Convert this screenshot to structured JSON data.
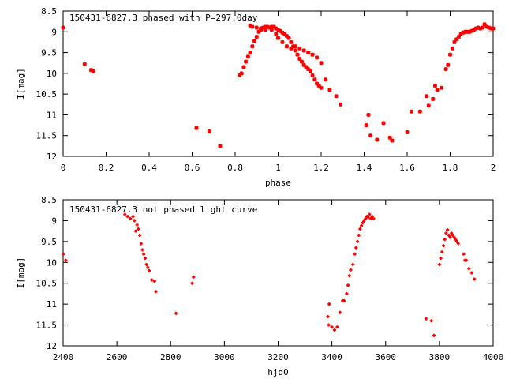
{
  "chart_data": [
    {
      "type": "scatter",
      "title": "150431-6827.3 phased with P=297.0day",
      "xlabel": "phase",
      "ylabel": "I[mag]",
      "xlim": [
        0,
        2
      ],
      "ylim": [
        8.5,
        12
      ],
      "y_inverted": true,
      "xticks": [
        "0",
        "0.2",
        "0.4",
        "0.6",
        "0.8",
        "1",
        "1.2",
        "1.4",
        "1.6",
        "1.8",
        "2"
      ],
      "yticks": [
        "8.5",
        "9",
        "9.5",
        "10",
        "10.5",
        "11",
        "11.5",
        "12"
      ],
      "grid": false,
      "marker_color": "#ff0000",
      "series": [
        {
          "x": [
            0.0,
            0.1,
            0.13,
            0.14,
            0.62,
            0.68,
            0.73,
            0.82,
            0.83,
            0.84,
            0.85,
            0.86,
            0.87,
            0.88,
            0.89,
            0.9,
            0.91,
            0.92,
            0.93,
            0.94,
            0.95,
            0.96,
            0.97,
            0.98,
            0.99,
            1.0,
            1.01,
            1.02,
            1.03,
            1.04,
            1.05,
            1.06,
            1.07,
            1.08,
            1.09,
            1.1,
            1.11,
            1.12,
            1.13,
            1.14,
            1.15,
            1.16,
            1.17,
            1.18,
            1.19,
            1.2,
            0.87,
            0.88,
            0.9,
            0.92,
            0.94,
            0.97,
            0.99,
            1.0,
            1.02,
            1.04,
            1.06,
            1.08,
            1.1,
            1.12,
            1.14,
            1.16,
            1.18,
            1.2,
            1.22,
            1.24,
            1.27,
            1.29,
            1.41,
            1.42,
            1.43,
            1.46,
            1.49,
            1.52,
            1.53,
            1.6,
            1.62,
            1.66,
            1.69,
            1.7,
            1.72,
            1.73,
            1.74,
            1.76,
            1.78,
            1.79,
            1.8,
            1.81,
            1.82,
            1.83,
            1.84,
            1.85,
            1.86,
            1.87,
            1.88,
            1.89,
            1.9,
            1.91,
            1.92,
            1.93,
            1.94,
            1.95,
            1.96,
            1.97,
            1.98,
            1.99,
            2.0
          ],
          "y": [
            8.9,
            9.78,
            9.92,
            9.95,
            11.32,
            11.4,
            11.75,
            10.05,
            10.0,
            9.85,
            9.72,
            9.6,
            9.5,
            9.35,
            9.22,
            9.12,
            9.0,
            8.95,
            8.9,
            8.88,
            8.88,
            8.9,
            8.88,
            8.88,
            8.92,
            8.95,
            8.98,
            9.02,
            9.05,
            9.1,
            9.15,
            9.25,
            9.35,
            9.45,
            9.55,
            9.65,
            9.72,
            9.8,
            9.85,
            9.9,
            9.95,
            10.05,
            10.15,
            10.25,
            10.3,
            10.35,
            8.85,
            8.88,
            8.9,
            8.92,
            8.95,
            8.95,
            9.05,
            9.15,
            9.25,
            9.35,
            9.4,
            9.35,
            9.4,
            9.45,
            9.5,
            9.55,
            9.62,
            9.75,
            10.15,
            10.4,
            10.55,
            10.75,
            11.25,
            11.0,
            11.5,
            11.6,
            11.2,
            11.55,
            11.62,
            11.42,
            10.92,
            10.92,
            10.55,
            10.78,
            10.62,
            10.3,
            10.4,
            10.35,
            9.9,
            9.8,
            9.55,
            9.4,
            9.25,
            9.18,
            9.12,
            9.05,
            9.02,
            9.0,
            9.0,
            9.0,
            8.98,
            8.95,
            8.92,
            8.9,
            8.92,
            8.9,
            8.82,
            8.88,
            8.9,
            8.92,
            8.92
          ]
        }
      ]
    },
    {
      "type": "scatter",
      "title": "150431-6827.3 not phased light curve",
      "xlabel": "hjd0",
      "ylabel": "I[mag]",
      "xlim": [
        2400,
        4000
      ],
      "ylim": [
        8.5,
        12
      ],
      "y_inverted": true,
      "xticks": [
        "2400",
        "2600",
        "2800",
        "3000",
        "3200",
        "3400",
        "3600",
        "3800",
        "4000"
      ],
      "yticks": [
        "8.5",
        "9",
        "9.5",
        "10",
        "10.5",
        "11",
        "11.5",
        "12"
      ],
      "grid": false,
      "marker_color": "#ff0000",
      "series": [
        {
          "x": [
            2400,
            2410,
            2630,
            2640,
            2650,
            2660,
            2665,
            2670,
            2675,
            2680,
            2685,
            2690,
            2695,
            2700,
            2705,
            2710,
            2715,
            2720,
            2730,
            2740,
            2745,
            2820,
            2880,
            2885,
            3385,
            3388,
            3390,
            3400,
            3410,
            3420,
            3430,
            3440,
            3445,
            3455,
            3460,
            3465,
            3470,
            3478,
            3485,
            3490,
            3495,
            3500,
            3505,
            3510,
            3515,
            3520,
            3525,
            3530,
            3535,
            3540,
            3545,
            3550,
            3555,
            3750,
            3770,
            3780,
            3800,
            3805,
            3810,
            3815,
            3820,
            3825,
            3830,
            3835,
            3840,
            3845,
            3850,
            3855,
            3860,
            3865,
            3870,
            3890,
            3895,
            3900,
            3910,
            3920,
            3930
          ],
          "y": [
            9.8,
            9.95,
            8.85,
            8.9,
            8.95,
            8.9,
            9.0,
            9.25,
            9.1,
            9.2,
            9.35,
            9.55,
            9.7,
            9.8,
            9.9,
            10.05,
            10.12,
            10.2,
            10.42,
            10.45,
            10.7,
            11.22,
            10.5,
            10.35,
            11.3,
            11.5,
            11.0,
            11.55,
            11.62,
            11.55,
            11.2,
            10.92,
            10.92,
            10.75,
            10.55,
            10.32,
            10.18,
            10.05,
            9.8,
            9.65,
            9.5,
            9.35,
            9.2,
            9.12,
            9.05,
            9.0,
            8.95,
            8.9,
            8.92,
            8.85,
            8.95,
            8.9,
            8.95,
            11.35,
            11.4,
            11.75,
            10.05,
            9.9,
            9.75,
            9.6,
            9.45,
            9.3,
            9.22,
            9.35,
            9.4,
            9.3,
            9.35,
            9.4,
            9.45,
            9.5,
            9.55,
            9.8,
            9.95,
            9.95,
            10.15,
            10.25,
            10.4
          ]
        }
      ]
    }
  ]
}
